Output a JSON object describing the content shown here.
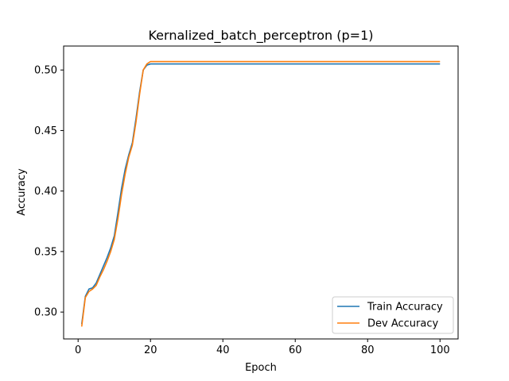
{
  "chart_data": {
    "type": "line",
    "title": "Kernalized_batch_perceptron (p=1)",
    "xlabel": "Epoch",
    "ylabel": "Accuracy",
    "xlim": [
      -4,
      105
    ],
    "ylim": [
      0.2778,
      0.5198
    ],
    "xticks": [
      0,
      20,
      40,
      60,
      80,
      100
    ],
    "xtick_labels": [
      "0",
      "20",
      "40",
      "60",
      "80",
      "100"
    ],
    "yticks": [
      0.3,
      0.35,
      0.4,
      0.45,
      0.5
    ],
    "ytick_labels": [
      "0.30",
      "0.35",
      "0.40",
      "0.45",
      "0.50"
    ],
    "grid": false,
    "legend_position": "bottom-right",
    "series": [
      {
        "name": "Train Accuracy",
        "color": "#1f77b4",
        "x": [
          1,
          2,
          3,
          4,
          5,
          6,
          7,
          8,
          9,
          10,
          11,
          12,
          13,
          14,
          15,
          16,
          17,
          18,
          19,
          20,
          100
        ],
        "y": [
          0.29,
          0.313,
          0.319,
          0.32,
          0.324,
          0.331,
          0.338,
          0.345,
          0.353,
          0.363,
          0.382,
          0.402,
          0.418,
          0.43,
          0.44,
          0.46,
          0.482,
          0.5,
          0.504,
          0.505,
          0.505
        ]
      },
      {
        "name": "Dev Accuracy",
        "color": "#ff7f0e",
        "x": [
          1,
          2,
          3,
          4,
          5,
          6,
          7,
          8,
          9,
          10,
          11,
          12,
          13,
          14,
          15,
          16,
          17,
          18,
          19,
          20,
          100
        ],
        "y": [
          0.288,
          0.312,
          0.317,
          0.319,
          0.322,
          0.329,
          0.335,
          0.342,
          0.35,
          0.36,
          0.377,
          0.397,
          0.414,
          0.428,
          0.438,
          0.457,
          0.48,
          0.5,
          0.505,
          0.507,
          0.507
        ]
      }
    ]
  }
}
